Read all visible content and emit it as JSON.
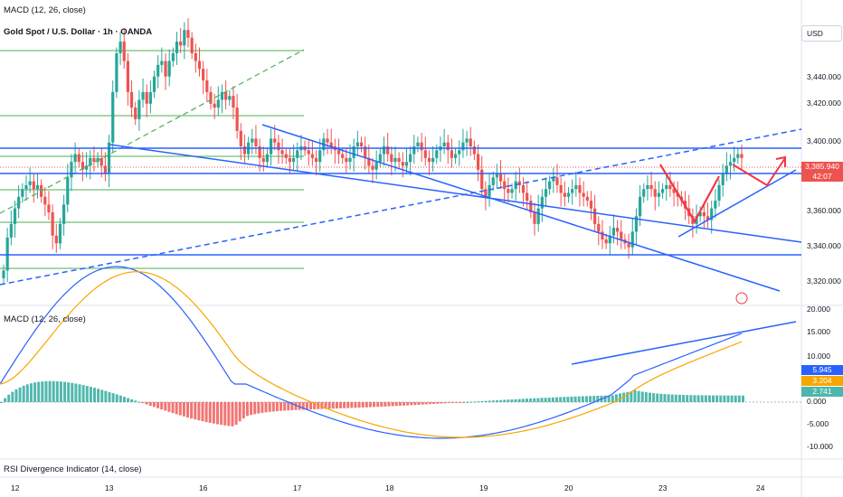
{
  "header": {
    "top_indicator": "MACD (12, 26, close)",
    "title": "Gold Spot / U.S. Dollar · 1h · OANDA",
    "currency": "USD"
  },
  "price_pane": {
    "yticks": [
      "3,440.000",
      "3,420.000",
      "3,400.000",
      "3,360.000",
      "3,340.000",
      "3,320.000"
    ],
    "last_price": "3,385.940",
    "countdown": "42:07",
    "colors": {
      "up": "#26a69a",
      "down": "#ef5350",
      "trend": "#2962ff",
      "level": "#4caf50",
      "arrow": "#f23645"
    }
  },
  "macd_pane": {
    "label": "MACD (12, 26, close)",
    "yticks": [
      "20.000",
      "15.000",
      "10.000",
      "0.000",
      "-5.000",
      "-10.000"
    ],
    "badges": [
      {
        "value": "5.945",
        "color": "#2962ff"
      },
      {
        "value": "3.204",
        "color": "#f7a600"
      },
      {
        "value": "2.741",
        "color": "#4db6ac"
      }
    ]
  },
  "rsi_pane": {
    "label": "RSI Divergence Indicator (14, close)"
  },
  "xaxis": {
    "ticks": [
      "12",
      "13",
      "16",
      "17",
      "18",
      "19",
      "20",
      "23",
      "24"
    ]
  },
  "chart_data": {
    "type": "candlestick",
    "title": "Gold Spot / U.S. Dollar · 1h · OANDA",
    "ylim": [
      3310,
      3460
    ],
    "closes": [
      3328,
      3345,
      3352,
      3360,
      3366,
      3370,
      3372,
      3374,
      3370,
      3372,
      3366,
      3362,
      3358,
      3346,
      3342,
      3352,
      3362,
      3376,
      3384,
      3388,
      3384,
      3380,
      3382,
      3386,
      3384,
      3386,
      3382,
      3378,
      3394,
      3420,
      3440,
      3446,
      3436,
      3420,
      3412,
      3406,
      3416,
      3420,
      3414,
      3420,
      3428,
      3434,
      3436,
      3428,
      3436,
      3440,
      3446,
      3444,
      3452,
      3448,
      3440,
      3436,
      3432,
      3426,
      3420,
      3414,
      3412,
      3416,
      3420,
      3416,
      3418,
      3412,
      3400,
      3392,
      3388,
      3394,
      3396,
      3392,
      3386,
      3384,
      3388,
      3396,
      3394,
      3390,
      3388,
      3386,
      3384,
      3386,
      3390,
      3392,
      3390,
      3388,
      3386,
      3384,
      3390,
      3396,
      3394,
      3392,
      3390,
      3388,
      3386,
      3384,
      3386,
      3392,
      3394,
      3392,
      3386,
      3382,
      3380,
      3384,
      3388,
      3392,
      3388,
      3384,
      3386,
      3384,
      3382,
      3384,
      3388,
      3392,
      3394,
      3390,
      3386,
      3384,
      3386,
      3390,
      3392,
      3394,
      3390,
      3386,
      3388,
      3390,
      3394,
      3396,
      3392,
      3388,
      3380,
      3370,
      3366,
      3372,
      3376,
      3378,
      3374,
      3370,
      3368,
      3370,
      3374,
      3372,
      3368,
      3364,
      3358,
      3352,
      3360,
      3366,
      3370,
      3374,
      3376,
      3372,
      3368,
      3366,
      3368,
      3370,
      3372,
      3368,
      3366,
      3364,
      3360,
      3352,
      3348,
      3344,
      3342,
      3346,
      3350,
      3348,
      3344,
      3342,
      3340,
      3348,
      3356,
      3366,
      3370,
      3372,
      3370,
      3366,
      3368,
      3370,
      3372,
      3370,
      3368,
      3366,
      3364,
      3360,
      3356,
      3352,
      3356,
      3358,
      3356,
      3354,
      3360,
      3364,
      3372,
      3378,
      3382,
      3384,
      3386,
      3388,
      3386
    ]
  }
}
